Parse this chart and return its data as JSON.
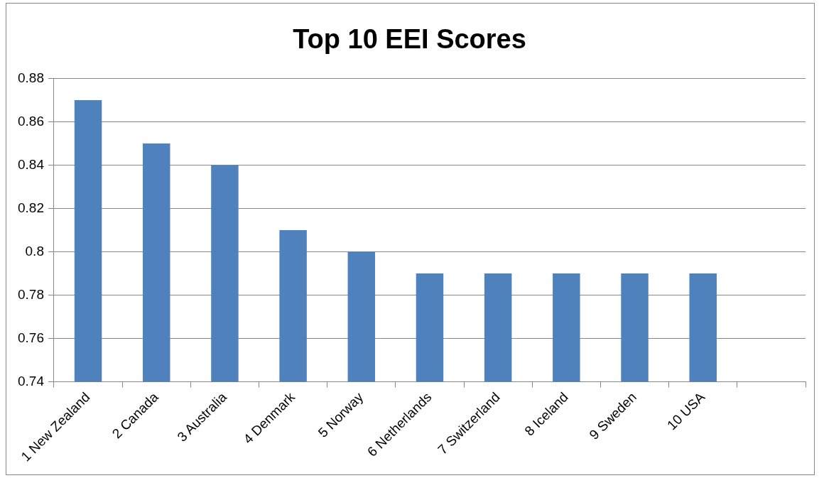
{
  "chart_data": {
    "type": "bar",
    "title": "Top 10 EEI Scores",
    "categories": [
      "1 New Zealand",
      "2 Canada",
      "3 Australia",
      "4 Denmark",
      "5 Norway",
      "6 Netherlands",
      "7 Switzerland",
      "8 Iceland",
      "9 Sweden",
      "10 USA",
      null
    ],
    "values": [
      0.87,
      0.85,
      0.84,
      0.81,
      0.8,
      0.79,
      0.79,
      0.79,
      0.79,
      0.79,
      null
    ],
    "color": "#4f81bd",
    "ylim": [
      0.74,
      0.88
    ],
    "yticks": [
      0.74,
      0.76,
      0.78,
      {
        "value": 0.8,
        "label": "0.8"
      },
      0.82,
      0.84,
      0.86,
      0.88
    ],
    "grid": "y",
    "legend": false
  }
}
